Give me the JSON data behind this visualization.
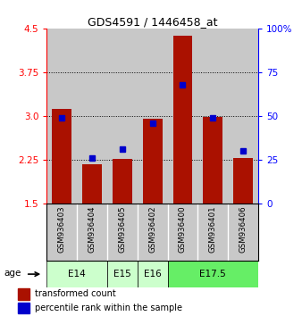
{
  "title": "GDS4591 / 1446458_at",
  "samples": [
    "GSM936403",
    "GSM936404",
    "GSM936405",
    "GSM936402",
    "GSM936400",
    "GSM936401",
    "GSM936406"
  ],
  "transformed_counts": [
    3.12,
    2.18,
    2.27,
    2.95,
    4.38,
    2.98,
    2.28
  ],
  "percentile_ranks": [
    49,
    26,
    31,
    46,
    68,
    49,
    30
  ],
  "age_groups": [
    {
      "label": "E14",
      "samples": [
        "GSM936403",
        "GSM936404"
      ],
      "color": "#ccffcc"
    },
    {
      "label": "E15",
      "samples": [
        "GSM936405"
      ],
      "color": "#ccffcc"
    },
    {
      "label": "E16",
      "samples": [
        "GSM936402"
      ],
      "color": "#ccffcc"
    },
    {
      "label": "E17.5",
      "samples": [
        "GSM936400",
        "GSM936401",
        "GSM936406"
      ],
      "color": "#66ee66"
    }
  ],
  "ylim_left": [
    1.5,
    4.5
  ],
  "ylim_right": [
    0,
    100
  ],
  "yticks_left": [
    1.5,
    2.25,
    3.0,
    3.75,
    4.5
  ],
  "yticks_right": [
    0,
    25,
    50,
    75,
    100
  ],
  "bar_color": "#aa1100",
  "percentile_color": "#0000cc",
  "background_bar": "#c8c8c8",
  "base_value": 1.5
}
